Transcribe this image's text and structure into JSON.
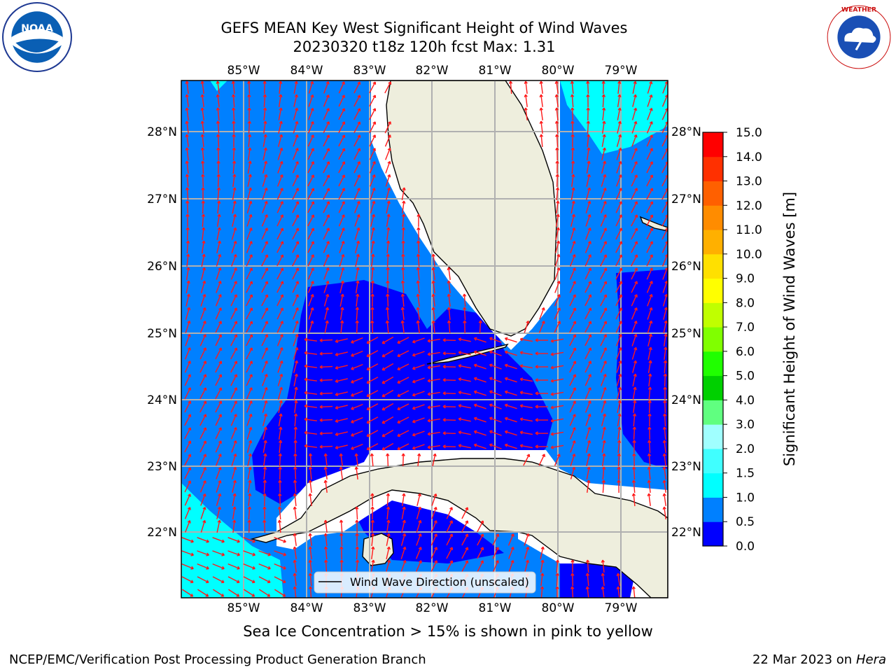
{
  "title": {
    "line1": "GEFS MEAN Key West Significant Height of Wind Waves",
    "line2": "20230320 t18z 120h fcst   Max: 1.31"
  },
  "logos": {
    "left": "noaa-logo",
    "right": "nws-logo"
  },
  "map": {
    "lon_labels": [
      "85°W",
      "84°W",
      "83°W",
      "82°W",
      "81°W",
      "80°W",
      "79°W"
    ],
    "lat_labels": [
      "28°N",
      "27°N",
      "26°N",
      "25°N",
      "24°N",
      "23°N",
      "22°N"
    ],
    "legend_label": "Wind Wave Direction (unscaled)",
    "arrow_color": "#ff1a1a",
    "land_color": "#eeeedd",
    "coast_color": "#000000",
    "grid_color": "#b0b0b0",
    "field_colors": {
      "low": "#0000ff",
      "mid": "#0080ff",
      "high": "#00ffff"
    }
  },
  "colorbar": {
    "label": "Significant Height of Wind Waves [m]",
    "ticks": [
      "15.0",
      "14.0",
      "13.0",
      "12.0",
      "11.0",
      "10.0",
      "9.0",
      "8.0",
      "7.0",
      "6.0",
      "5.0",
      "4.0",
      "3.0",
      "2.0",
      "1.5",
      "1.0",
      "0.5",
      "0.0"
    ],
    "colors": [
      "#0000ff",
      "#0080ff",
      "#00ffff",
      "#40ffff",
      "#a0ffff",
      "#60ff80",
      "#00d000",
      "#20ff00",
      "#80ff00",
      "#c0ff00",
      "#ffff00",
      "#ffe000",
      "#ffb000",
      "#ff8c00",
      "#ff6000",
      "#ff3000",
      "#ff0000"
    ]
  },
  "footnote": "Sea Ice Concentration > 15% is shown in pink to yellow",
  "credit": "NCEP/EMC/Verification Post Processing Product Generation Branch",
  "date": "22 Mar 2023 on",
  "machine": "Hera"
}
